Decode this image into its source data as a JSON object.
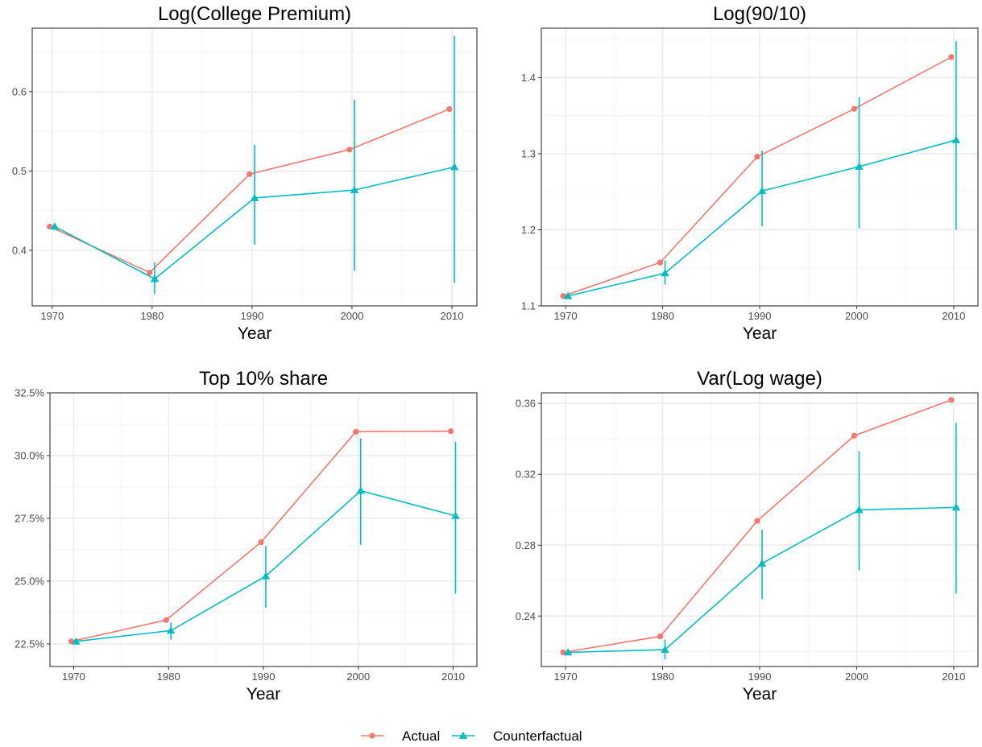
{
  "legend": {
    "items": [
      {
        "label": "Actual",
        "color": "#F8766D",
        "marker": "circle"
      },
      {
        "label": "Counterfactual",
        "color": "#00BFC4",
        "marker": "triangle"
      }
    ],
    "position": "bottom"
  },
  "chart_data": [
    {
      "type": "line",
      "title": "Log(College Premium)",
      "xlabel": "Year",
      "ylabel": "",
      "x": [
        1970,
        1980,
        1990,
        2000,
        2010
      ],
      "xticks": [
        1970,
        1980,
        1990,
        2000,
        2010
      ],
      "xlim": [
        1968,
        2012.5
      ],
      "ylim": [
        0.33,
        0.68
      ],
      "yticks": [
        0.4,
        0.5,
        0.6
      ],
      "ytick_labels": [
        "0.4",
        "0.5",
        "0.6"
      ],
      "grid": true,
      "series": [
        {
          "name": "Actual",
          "values": [
            0.43,
            0.372,
            0.496,
            0.527,
            0.578
          ]
        },
        {
          "name": "Counterfactual",
          "values": [
            0.43,
            0.364,
            0.466,
            0.476,
            0.505
          ],
          "error_low": [
            0.43,
            0.345,
            0.407,
            0.374,
            0.359
          ],
          "error_high": [
            0.43,
            0.385,
            0.533,
            0.59,
            0.67
          ]
        }
      ]
    },
    {
      "type": "line",
      "title": "Log(90/10)",
      "xlabel": "Year",
      "ylabel": "",
      "x": [
        1970,
        1980,
        1990,
        2000,
        2010
      ],
      "xticks": [
        1970,
        1980,
        1990,
        2000,
        2010
      ],
      "xlim": [
        1967.5,
        2012.5
      ],
      "ylim": [
        1.1,
        1.465
      ],
      "yticks": [
        1.1,
        1.2,
        1.3,
        1.4
      ],
      "ytick_labels": [
        "1.1",
        "1.2",
        "1.3",
        "1.4"
      ],
      "grid": true,
      "series": [
        {
          "name": "Actual",
          "values": [
            1.113,
            1.157,
            1.296,
            1.359,
            1.427
          ]
        },
        {
          "name": "Counterfactual",
          "values": [
            1.113,
            1.143,
            1.251,
            1.283,
            1.318
          ],
          "error_low": [
            1.113,
            1.128,
            1.205,
            1.202,
            1.2
          ],
          "error_high": [
            1.113,
            1.16,
            1.304,
            1.374,
            1.448
          ]
        }
      ]
    },
    {
      "type": "line",
      "title": "Top 10% share",
      "xlabel": "Year",
      "ylabel": "",
      "x": [
        1970,
        1980,
        1990,
        2000,
        2010
      ],
      "xticks": [
        1970,
        1980,
        1990,
        2000,
        2010
      ],
      "xlim": [
        1967.5,
        2012.5
      ],
      "ylim": [
        21.6,
        32.5
      ],
      "yticks": [
        22.5,
        25.0,
        27.5,
        30.0,
        32.5
      ],
      "ytick_labels": [
        "22.5%",
        "25.0%",
        "27.5%",
        "30.0%",
        "32.5%"
      ],
      "grid": true,
      "series": [
        {
          "name": "Actual",
          "values": [
            22.6,
            23.45,
            26.55,
            30.95,
            30.97
          ]
        },
        {
          "name": "Counterfactual",
          "values": [
            22.6,
            23.03,
            25.2,
            28.6,
            27.6
          ],
          "error_low": [
            22.6,
            22.67,
            23.95,
            26.45,
            24.5
          ],
          "error_high": [
            22.6,
            23.35,
            26.4,
            30.68,
            30.55
          ]
        }
      ]
    },
    {
      "type": "line",
      "title": "Var(Log wage)",
      "xlabel": "Year",
      "ylabel": "",
      "x": [
        1970,
        1980,
        1990,
        2000,
        2010
      ],
      "xticks": [
        1970,
        1980,
        1990,
        2000,
        2010
      ],
      "xlim": [
        1967.5,
        2012.5
      ],
      "ylim": [
        0.2115,
        0.366
      ],
      "yticks": [
        0.24,
        0.28,
        0.32,
        0.36
      ],
      "ytick_labels": [
        "0.24",
        "0.28",
        "0.32",
        "0.36"
      ],
      "grid": true,
      "series": [
        {
          "name": "Actual",
          "values": [
            0.2195,
            0.2285,
            0.2937,
            0.3418,
            0.362
          ]
        },
        {
          "name": "Counterfactual",
          "values": [
            0.2195,
            0.221,
            0.2697,
            0.2999,
            0.3013
          ],
          "error_low": [
            0.2195,
            0.2155,
            0.2495,
            0.2658,
            0.2527
          ],
          "error_high": [
            0.2195,
            0.2268,
            0.2887,
            0.333,
            0.349
          ]
        }
      ]
    }
  ]
}
